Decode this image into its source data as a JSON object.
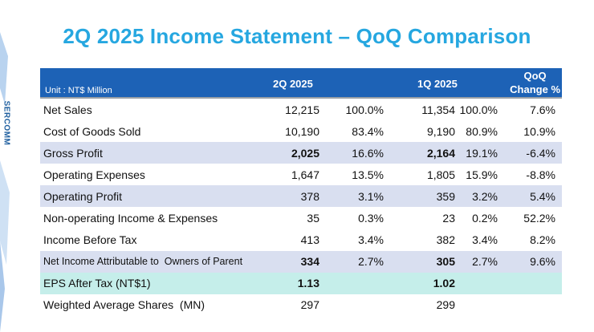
{
  "title": "2Q 2025 Income Statement – QoQ Comparison",
  "logo_text": "SERCOMM",
  "header": {
    "unit": "Unit : NT$ Million",
    "col_2q": "2Q 2025",
    "col_1q": "1Q 2025",
    "col_qoq_line1": "QoQ",
    "col_qoq_line2": "Change %"
  },
  "rows": [
    {
      "label": "Net Sales",
      "v2": "12,215",
      "p2": "100.0%",
      "v1": "11,354",
      "p1": "100.0%",
      "qoq": "7.6%"
    },
    {
      "label": "Cost of Goods Sold",
      "v2": "10,190",
      "p2": "83.4%",
      "v1": "9,190",
      "p1": "80.9%",
      "qoq": "10.9%"
    },
    {
      "label": "Gross Profit",
      "v2": "2,025",
      "p2": "16.6%",
      "v1": "2,164",
      "p1": "19.1%",
      "qoq": "-6.4%"
    },
    {
      "label": "Operating Expenses",
      "v2": "1,647",
      "p2": "13.5%",
      "v1": "1,805",
      "p1": "15.9%",
      "qoq": "-8.8%"
    },
    {
      "label": "Operating Profit",
      "v2": "378",
      "p2": "3.1%",
      "v1": "359",
      "p1": "3.2%",
      "qoq": "5.4%"
    },
    {
      "label": "Non-operating Income & Expenses",
      "v2": "35",
      "p2": "0.3%",
      "v1": "23",
      "p1": "0.2%",
      "qoq": "52.2%"
    },
    {
      "label": "Income Before Tax",
      "v2": "413",
      "p2": "3.4%",
      "v1": "382",
      "p1": "3.4%",
      "qoq": "8.2%"
    },
    {
      "label": "Net Income Attributable to  Owners of Parent",
      "v2": "334",
      "p2": "2.7%",
      "v1": "305",
      "p1": "2.7%",
      "qoq": "9.6%"
    },
    {
      "label": "EPS After Tax (NT$1)",
      "v2": "1.13",
      "v1": "1.02"
    },
    {
      "label": "Weighted Average Shares  (MN)",
      "v2": "297",
      "v1": "299"
    }
  ],
  "colors": {
    "title": "#26a7e0",
    "header_bg": "#1d62b6",
    "row_shade": "#d9dff0",
    "eps_shade": "#c5eeea"
  }
}
